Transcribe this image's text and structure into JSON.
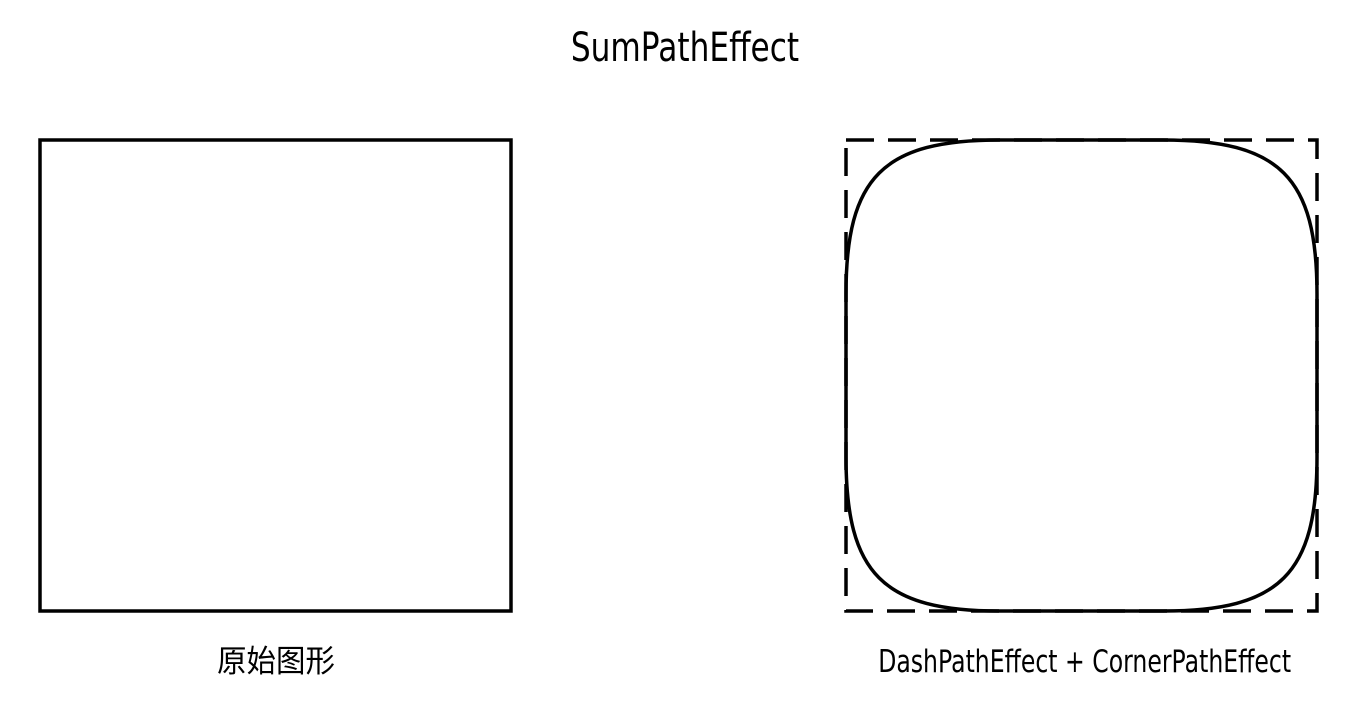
{
  "title": "SumPathEffect",
  "panels": {
    "left": {
      "caption": "原始图形",
      "shape": "square",
      "stroke_style": "solid"
    },
    "right": {
      "caption": "DashPathEffect + CornerPathEffect",
      "components": [
        {
          "effect": "DashPathEffect",
          "stroke_style": "dashed square"
        },
        {
          "effect": "CornerPathEffect",
          "stroke_style": "solid rounded square"
        }
      ]
    }
  },
  "colors": {
    "background": "#ffffff",
    "stroke": "#000000"
  }
}
